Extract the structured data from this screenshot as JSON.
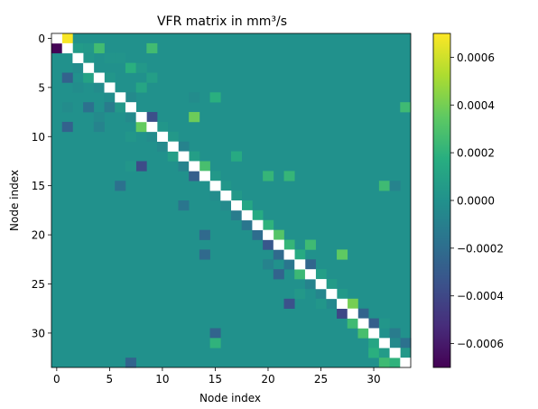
{
  "chart_data": {
    "type": "heatmap",
    "title": "VFR matrix in mm³/s",
    "xlabel": "Node index",
    "ylabel": "Node index",
    "n": 34,
    "x_ticks": [
      0,
      5,
      10,
      15,
      20,
      25,
      30
    ],
    "y_ticks": [
      0,
      5,
      10,
      15,
      20,
      25,
      30
    ],
    "diagonal": "no data (white)",
    "colormap": "viridis",
    "colorbar": {
      "range": [
        -0.0007,
        0.0007
      ],
      "ticks": [
        -0.0006,
        -0.0004,
        -0.0002,
        0.0,
        0.0002,
        0.0004,
        0.0006
      ],
      "tick_labels": [
        "−0.0006",
        "−0.0004",
        "−0.0002",
        "0.0000",
        "0.0002",
        "0.0004",
        "0.0006"
      ]
    },
    "cells": [
      [
        0,
        1,
        0.00069
      ],
      [
        1,
        0,
        -0.00069
      ],
      [
        1,
        4,
        0.00026
      ],
      [
        1,
        9,
        0.00026
      ],
      [
        1,
        2,
        6e-05
      ],
      [
        1,
        3,
        4e-05
      ],
      [
        2,
        3,
        3e-05
      ],
      [
        2,
        5,
        2e-05
      ],
      [
        2,
        6,
        2e-05
      ],
      [
        3,
        2,
        -3e-05
      ],
      [
        3,
        7,
        0.00018
      ],
      [
        3,
        8,
        4e-05
      ],
      [
        4,
        1,
        -0.00026
      ],
      [
        4,
        3,
        0.0001
      ],
      [
        4,
        5,
        3e-05
      ],
      [
        4,
        9,
        8e-05
      ],
      [
        5,
        4,
        -3e-05
      ],
      [
        5,
        8,
        0.00012
      ],
      [
        5,
        2,
        -2e-05
      ],
      [
        6,
        5,
        -2e-05
      ],
      [
        6,
        15,
        0.00018
      ],
      [
        6,
        7,
        -4e-05
      ],
      [
        6,
        13,
        -3e-05
      ],
      [
        7,
        3,
        -0.00018
      ],
      [
        7,
        5,
        -0.00012
      ],
      [
        7,
        33,
        0.00025
      ],
      [
        7,
        6,
        4e-05
      ],
      [
        7,
        1,
        -3e-05
      ],
      [
        8,
        4,
        -4e-05
      ],
      [
        8,
        13,
        0.00038
      ],
      [
        8,
        9,
        -0.00036
      ],
      [
        8,
        7,
        -4e-05
      ],
      [
        9,
        1,
        -0.00026
      ],
      [
        9,
        8,
        0.00036
      ],
      [
        9,
        4,
        -8e-05
      ],
      [
        9,
        10,
        3e-05
      ],
      [
        10,
        9,
        -3e-05
      ],
      [
        10,
        11,
        4e-05
      ],
      [
        10,
        7,
        3e-05
      ],
      [
        11,
        12,
        -8e-05
      ],
      [
        11,
        10,
        -4e-05
      ],
      [
        12,
        17,
        0.00015
      ],
      [
        12,
        13,
        8e-05
      ],
      [
        12,
        11,
        8e-05
      ],
      [
        13,
        8,
        -0.00038
      ],
      [
        13,
        14,
        0.00028
      ],
      [
        13,
        12,
        -8e-05
      ],
      [
        13,
        7,
        3e-05
      ],
      [
        14,
        13,
        -0.00028
      ],
      [
        14,
        20,
        0.00022
      ],
      [
        14,
        22,
        0.00022
      ],
      [
        14,
        15,
        4e-05
      ],
      [
        15,
        6,
        -0.00018
      ],
      [
        15,
        31,
        0.00025
      ],
      [
        15,
        32,
        -8e-05
      ],
      [
        15,
        16,
        3e-05
      ],
      [
        16,
        15,
        -3e-05
      ],
      [
        16,
        17,
        4e-05
      ],
      [
        17,
        12,
        -0.00015
      ],
      [
        17,
        18,
        0.00012
      ],
      [
        17,
        16,
        -4e-05
      ],
      [
        18,
        17,
        -0.00012
      ],
      [
        18,
        19,
        0.00015
      ],
      [
        19,
        18,
        -0.00015
      ],
      [
        19,
        20,
        0.0002
      ],
      [
        20,
        14,
        -0.00022
      ],
      [
        20,
        19,
        -0.0002
      ],
      [
        20,
        21,
        0.00032
      ],
      [
        21,
        20,
        -0.00032
      ],
      [
        21,
        22,
        0.00022
      ],
      [
        21,
        24,
        0.00025
      ],
      [
        22,
        14,
        -0.00022
      ],
      [
        22,
        21,
        -0.00022
      ],
      [
        22,
        23,
        0.00015
      ],
      [
        22,
        27,
        0.00035
      ],
      [
        23,
        22,
        -0.00015
      ],
      [
        23,
        24,
        -0.00024
      ],
      [
        23,
        20,
        -8e-05
      ],
      [
        24,
        21,
        -0.00025
      ],
      [
        24,
        23,
        0.00024
      ],
      [
        24,
        25,
        8e-05
      ],
      [
        25,
        24,
        -8e-05
      ],
      [
        25,
        26,
        6e-05
      ],
      [
        26,
        25,
        -6e-05
      ],
      [
        26,
        27,
        5e-05
      ],
      [
        26,
        23,
        4e-05
      ],
      [
        27,
        22,
        -0.00035
      ],
      [
        27,
        28,
        0.0004
      ],
      [
        27,
        26,
        -5e-05
      ],
      [
        27,
        25,
        3e-05
      ],
      [
        28,
        27,
        -0.0004
      ],
      [
        28,
        29,
        -0.00025
      ],
      [
        29,
        28,
        0.00025
      ],
      [
        29,
        30,
        -0.00028
      ],
      [
        29,
        31,
        3e-05
      ],
      [
        30,
        15,
        -0.00025
      ],
      [
        30,
        29,
        0.00028
      ],
      [
        30,
        32,
        -0.00012
      ],
      [
        31,
        15,
        0.0002
      ],
      [
        31,
        30,
        0.00012
      ],
      [
        31,
        33,
        -0.00018
      ],
      [
        31,
        32,
        -4e-05
      ],
      [
        32,
        30,
        0.00018
      ],
      [
        32,
        31,
        6e-05
      ],
      [
        32,
        33,
        4e-05
      ],
      [
        33,
        7,
        -0.00025
      ],
      [
        33,
        31,
        0.00025
      ],
      [
        33,
        32,
        0.0002
      ]
    ]
  }
}
